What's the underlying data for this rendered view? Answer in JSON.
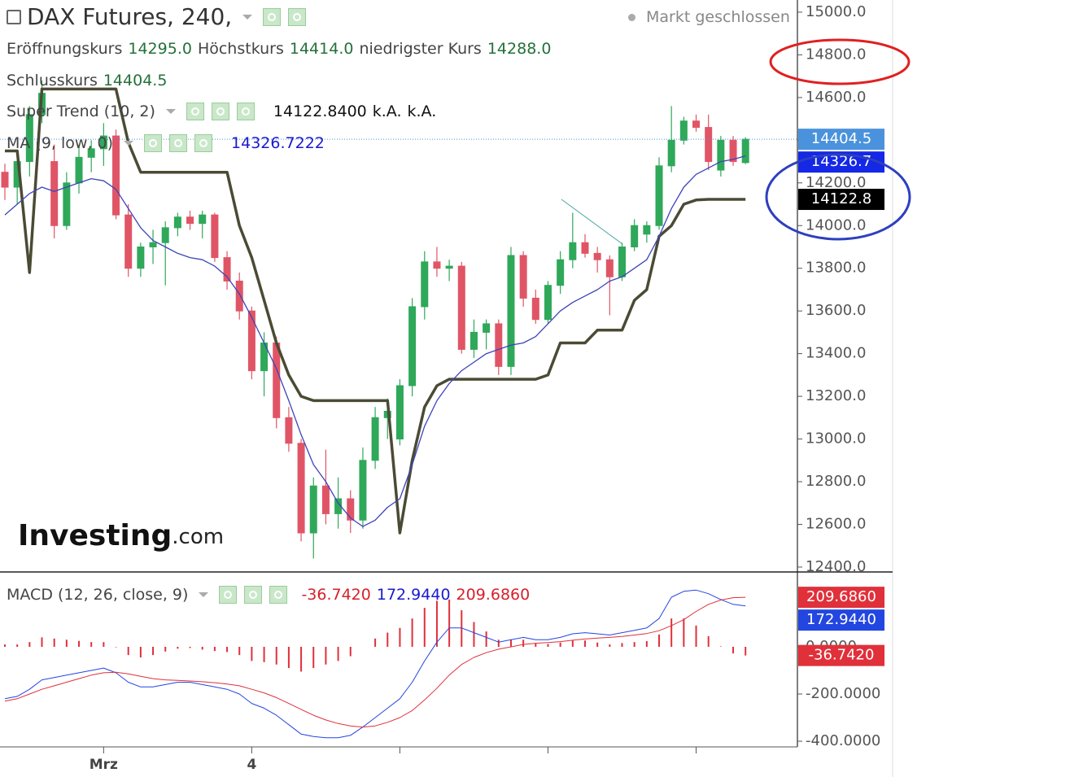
{
  "header": {
    "title": "DAX Futures, 240,",
    "status": "Markt geschlossen",
    "ohlc": [
      {
        "label": "Eröffnungskurs",
        "value": "14295.0"
      },
      {
        "label": "Höchstkurs",
        "value": "14414.0"
      },
      {
        "label": "niedrigster Kurs",
        "value": "14288.0"
      },
      {
        "label": "Schlusskurs",
        "value": "14404.5"
      }
    ],
    "logo": [
      "Investing",
      ".com"
    ]
  },
  "chart_data": [
    {
      "type": "candlestick",
      "categories": [
        null,
        null,
        null,
        null,
        null,
        null,
        null,
        null,
        "Mrz",
        null,
        null,
        null,
        null,
        null,
        null,
        null,
        null,
        null,
        null,
        null,
        "4",
        null,
        null,
        null,
        null,
        null,
        null,
        null,
        null,
        null,
        null,
        null,
        null,
        null,
        null,
        null,
        null,
        null,
        null,
        null,
        null,
        null,
        null,
        null,
        null,
        null,
        null,
        null,
        null,
        null,
        null,
        null,
        null,
        null,
        null,
        null,
        null,
        null,
        null,
        null,
        null
      ],
      "open": [
        14250,
        14180,
        14300,
        14520,
        14300,
        14000,
        14200,
        14320,
        14360,
        14420,
        14050,
        13800,
        13900,
        13920,
        13990,
        14040,
        14010,
        14050,
        13850,
        13740,
        13600,
        13320,
        13450,
        13100,
        12980,
        12560,
        12780,
        12650,
        12720,
        12620,
        12900,
        13100,
        13000,
        13250,
        13620,
        13830,
        13800,
        13810,
        13420,
        13500,
        13540,
        13340,
        13860,
        13660,
        13560,
        13720,
        13840,
        13920,
        13870,
        13840,
        13760,
        13900,
        13960,
        14000,
        14280,
        14400,
        14490,
        14460,
        14260,
        14400,
        14295
      ],
      "high": [
        14290,
        14320,
        14560,
        14680,
        14380,
        14250,
        14380,
        14400,
        14480,
        14450,
        14100,
        13920,
        13980,
        14020,
        14060,
        14070,
        14070,
        14060,
        13880,
        13780,
        13620,
        13500,
        13480,
        13150,
        13000,
        12820,
        12950,
        12820,
        12760,
        12960,
        13150,
        13190,
        13280,
        13660,
        13880,
        13900,
        13840,
        13830,
        13560,
        13560,
        13560,
        13900,
        13880,
        13700,
        13740,
        13880,
        14060,
        13960,
        13900,
        13860,
        13920,
        14030,
        14020,
        14320,
        14560,
        14510,
        14520,
        14520,
        14420,
        14420,
        14414
      ],
      "low": [
        14120,
        14100,
        14230,
        14480,
        13940,
        13980,
        14150,
        14250,
        14280,
        14030,
        13760,
        13760,
        13820,
        13720,
        13950,
        13980,
        13940,
        13830,
        13700,
        13560,
        13280,
        13200,
        13050,
        12940,
        12520,
        12440,
        12600,
        12580,
        12560,
        12580,
        12860,
        13000,
        12970,
        13200,
        13560,
        13760,
        13740,
        13400,
        13380,
        13420,
        13300,
        13300,
        13620,
        13540,
        13540,
        13680,
        13800,
        13850,
        13780,
        13580,
        13740,
        13880,
        13920,
        13980,
        14250,
        14380,
        14440,
        14260,
        14230,
        14280,
        14288
      ],
      "close": [
        14180,
        14300,
        14520,
        14620,
        14000,
        14200,
        14320,
        14360,
        14420,
        14050,
        13800,
        13900,
        13920,
        13990,
        14040,
        14010,
        14050,
        13850,
        13740,
        13600,
        13320,
        13450,
        13100,
        12980,
        12560,
        12780,
        12650,
        12720,
        12620,
        12900,
        13100,
        13130,
        13250,
        13620,
        13830,
        13800,
        13810,
        13420,
        13500,
        13540,
        13340,
        13860,
        13660,
        13560,
        13720,
        13840,
        13920,
        13870,
        13840,
        13760,
        13900,
        14000,
        14000,
        14280,
        14400,
        14490,
        14460,
        14300,
        14400,
        14300,
        14404.5
      ],
      "up_color": "#2fa85a",
      "down_color": "#e05566",
      "last_label": "14404.5",
      "last_color": "#4a92dc",
      "series": [
        {
          "name": "Super Trend (10, 2)",
          "color": "#4b4b35",
          "legend_values": [
            "14122.8400",
            "k.A.",
            "k.A."
          ],
          "tag_label": "14122.8",
          "tag_color": "#000000",
          "values": [
            14350,
            14350,
            13780,
            14640,
            14640,
            14640,
            14640,
            14640,
            14640,
            14640,
            14390,
            14250,
            14250,
            14250,
            14250,
            14250,
            14250,
            14250,
            14250,
            14000,
            13850,
            13650,
            13450,
            13300,
            13200,
            13180,
            13180,
            13180,
            13180,
            13180,
            13180,
            13180,
            12560,
            12900,
            13150,
            13250,
            13280,
            13280,
            13280,
            13280,
            13280,
            13280,
            13280,
            13280,
            13300,
            13450,
            13450,
            13450,
            13510,
            13510,
            13510,
            13650,
            13700,
            13950,
            14000,
            14100,
            14120,
            14122.84,
            14122.84,
            14122.84,
            14122.84
          ]
        },
        {
          "name": "MA (9, low, 0)",
          "color": "#3d44b8",
          "legend_values": [
            "14326.7222"
          ],
          "tag_label": "14326.7",
          "tag_color": "#1428e6",
          "values": [
            14050,
            14100,
            14150,
            14180,
            14160,
            14180,
            14200,
            14220,
            14210,
            14170,
            14080,
            13990,
            13930,
            13900,
            13870,
            13850,
            13840,
            13810,
            13760,
            13680,
            13570,
            13450,
            13330,
            13180,
            13020,
            12880,
            12800,
            12700,
            12630,
            12590,
            12620,
            12680,
            12720,
            12880,
            13060,
            13180,
            13260,
            13320,
            13360,
            13400,
            13420,
            13440,
            13450,
            13480,
            13540,
            13600,
            13640,
            13670,
            13700,
            13740,
            13760,
            13800,
            13840,
            13950,
            14080,
            14180,
            14240,
            14270,
            14300,
            14310,
            14326.7222
          ]
        }
      ],
      "ylim": [
        12377,
        15057
      ],
      "yticks": [
        {
          "value": 15000,
          "label": "15000.0"
        },
        {
          "value": 14800,
          "label": "14800.0"
        },
        {
          "value": 14600,
          "label": "14600.0"
        },
        {
          "value": 14400,
          "label": "14400.0"
        },
        {
          "value": 14200,
          "label": "14200.0"
        },
        {
          "value": 14000,
          "label": "14000.0"
        },
        {
          "value": 13800,
          "label": "13800.0"
        },
        {
          "value": 13600,
          "label": "13600.0"
        },
        {
          "value": 13400,
          "label": "13400.0"
        },
        {
          "value": 13200,
          "label": "13200.0"
        },
        {
          "value": 13000,
          "label": "13000.0"
        },
        {
          "value": 12800,
          "label": "12800.0"
        },
        {
          "value": 12600,
          "label": "12600.0"
        },
        {
          "value": 12400,
          "label": "12400.0"
        }
      ]
    },
    {
      "type": "macd",
      "title": "MACD (12, 26, close, 9)",
      "series": [
        {
          "style": "bars",
          "color": "#e0303a",
          "legend_value": "-36.7420",
          "tag_label": "-36.7420",
          "values": [
            10,
            10,
            20,
            40,
            35,
            30,
            25,
            20,
            20,
            -2,
            -35,
            -45,
            -35,
            -20,
            -8,
            -5,
            -12,
            -18,
            -22,
            -35,
            -60,
            -65,
            -75,
            -90,
            -105,
            -90,
            -75,
            -60,
            -40,
            0,
            35,
            60,
            80,
            120,
            165,
            195,
            200,
            155,
            105,
            65,
            30,
            30,
            30,
            15,
            12,
            18,
            27,
            27,
            18,
            10,
            16,
            20,
            24,
            52,
            120,
            120,
            90,
            45,
            2,
            -28,
            -36.742
          ]
        },
        {
          "style": "line",
          "color": "#2346e0",
          "legend_value": "172.9440",
          "tag_label": "172.9440",
          "values": [
            -220,
            -210,
            -180,
            -140,
            -130,
            -120,
            -110,
            -100,
            -90,
            -110,
            -150,
            -170,
            -170,
            -160,
            -150,
            -150,
            -160,
            -170,
            -180,
            -200,
            -240,
            -260,
            -290,
            -330,
            -370,
            -380,
            -385,
            -385,
            -375,
            -340,
            -300,
            -260,
            -220,
            -150,
            -60,
            20,
            80,
            80,
            60,
            40,
            20,
            30,
            40,
            30,
            30,
            40,
            55,
            60,
            55,
            50,
            60,
            70,
            80,
            120,
            210,
            235,
            240,
            225,
            200,
            180,
            172.944
          ]
        },
        {
          "style": "line",
          "color": "#e0303a",
          "legend_value": "209.6860",
          "tag_label": "209.6860",
          "values": [
            -230,
            -220,
            -200,
            -180,
            -165,
            -150,
            -135,
            -120,
            -110,
            -108,
            -115,
            -125,
            -135,
            -140,
            -142,
            -145,
            -148,
            -152,
            -158,
            -165,
            -180,
            -195,
            -215,
            -240,
            -265,
            -290,
            -310,
            -325,
            -335,
            -340,
            -335,
            -320,
            -300,
            -270,
            -225,
            -175,
            -120,
            -75,
            -45,
            -25,
            -10,
            0,
            10,
            15,
            18,
            22,
            28,
            33,
            37,
            40,
            44,
            50,
            56,
            68,
            90,
            115,
            150,
            180,
            198,
            208,
            209.686
          ]
        }
      ],
      "ylim": [
        -424,
        317
      ],
      "yticks": [
        {
          "value": 0,
          "label": "0.0000"
        },
        {
          "value": -200,
          "label": "-200.0000"
        },
        {
          "value": -400,
          "label": "-400.0000"
        }
      ]
    }
  ]
}
